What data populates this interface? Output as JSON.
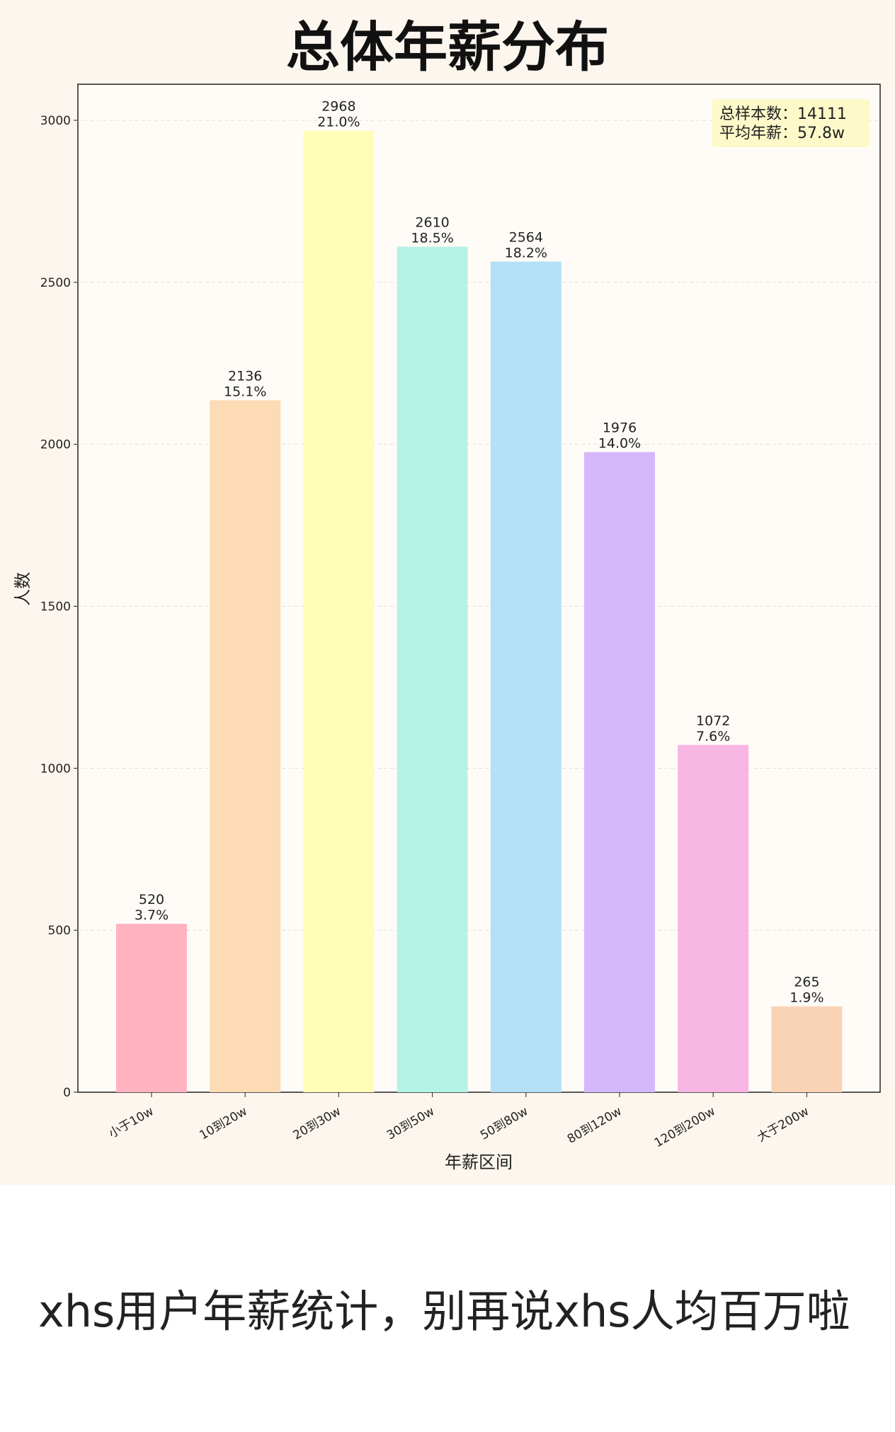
{
  "chart_data": {
    "type": "bar",
    "title": "总体年薪分布",
    "xlabel": "年薪区间",
    "ylabel": "人数",
    "categories": [
      "小于10w",
      "10到20w",
      "20到30w",
      "30到50w",
      "50到80w",
      "80到120w",
      "120到200w",
      "大于200w"
    ],
    "values": [
      520,
      2136,
      2968,
      2610,
      2564,
      1976,
      1072,
      265
    ],
    "percent_labels": [
      "3.7%",
      "15.1%",
      "21.0%",
      "18.5%",
      "18.2%",
      "14.0%",
      "7.6%",
      "1.9%"
    ],
    "ylim": [
      0,
      3100
    ],
    "yticks": [
      0,
      500,
      1000,
      1500,
      2000,
      2500,
      3000
    ],
    "grid": "horizontal dashed",
    "bar_colors": [
      "#ffb3c1",
      "#fddcb5",
      "#fffdb8",
      "#b5f2e6",
      "#b3e0f5",
      "#d5b8fb",
      "#f7b5e3",
      "#f9d3b5"
    ],
    "annotation": {
      "lines": [
        "总样本数：14111",
        "平均年薪：57.8w"
      ],
      "placement": "top-right",
      "background": "#fdf9c9"
    }
  },
  "caption": "xhs用户年薪统计，别再说xhs人均百万啦"
}
